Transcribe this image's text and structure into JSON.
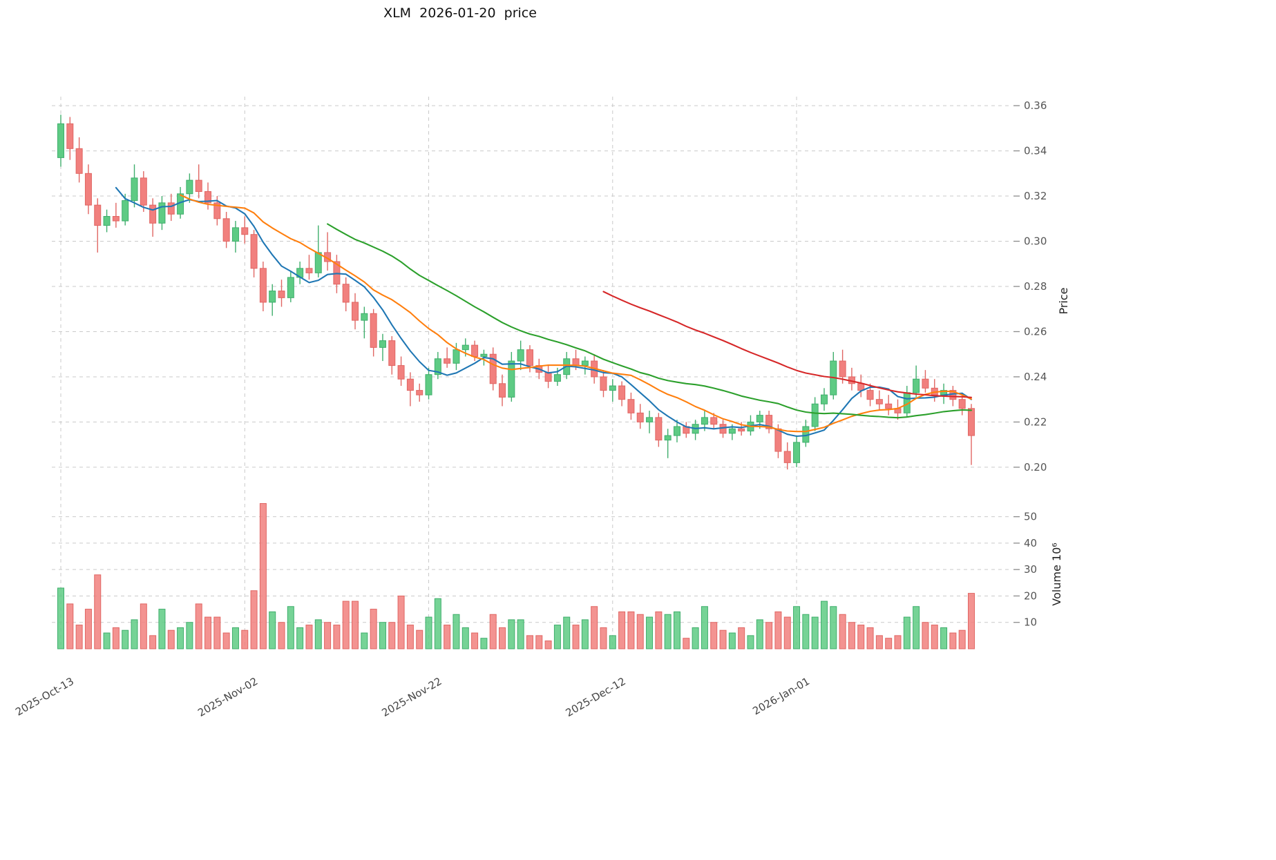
{
  "title": "XLM  2026-01-20  price",
  "chart_data": {
    "type": "candlestick",
    "title": "XLM  2026-01-20  price",
    "ylabel_price": "Price",
    "ylabel_volume": "Volume  10⁶",
    "legend": "none",
    "grid": true,
    "price_ticks": [
      0.2,
      0.22,
      0.24,
      0.26,
      0.28,
      0.3,
      0.32,
      0.34,
      0.36
    ],
    "price_range": [
      0.196,
      0.364
    ],
    "volume_ticks": [
      10,
      20,
      30,
      40,
      50
    ],
    "volume_max": 58,
    "x_ticks": [
      {
        "label": "2025-Oct-13",
        "index": 0
      },
      {
        "label": "2025-Nov-02",
        "index": 20
      },
      {
        "label": "2025-Nov-22",
        "index": 40
      },
      {
        "label": "2025-Dec-12",
        "index": 60
      },
      {
        "label": "2026-Jan-01",
        "index": 80
      }
    ],
    "colors": {
      "up": "#5ecb84",
      "up_edge": "#3fae6c",
      "down": "#f1807e",
      "down_edge": "#e06663",
      "grid": "#c9c9c9",
      "tick_text": "#555555"
    },
    "moving_averages": [
      {
        "name": "MA7",
        "window": 7,
        "color": "#1f77b4"
      },
      {
        "name": "MA14",
        "window": 14,
        "color": "#ff7f0e"
      },
      {
        "name": "MA30",
        "window": 30,
        "color": "#2ca02c"
      },
      {
        "name": "MA60",
        "window": 60,
        "color": "#d62728"
      }
    ],
    "columns": [
      "date",
      "open",
      "high",
      "low",
      "close",
      "volume_millions"
    ],
    "candles": [
      [
        "2025-10-13",
        0.337,
        0.356,
        0.333,
        0.352,
        23
      ],
      [
        "2025-10-14",
        0.352,
        0.355,
        0.336,
        0.341,
        17
      ],
      [
        "2025-10-15",
        0.341,
        0.346,
        0.326,
        0.33,
        9
      ],
      [
        "2025-10-16",
        0.33,
        0.334,
        0.312,
        0.316,
        15
      ],
      [
        "2025-10-17",
        0.316,
        0.319,
        0.295,
        0.307,
        28
      ],
      [
        "2025-10-18",
        0.307,
        0.314,
        0.304,
        0.311,
        6
      ],
      [
        "2025-10-19",
        0.311,
        0.317,
        0.306,
        0.309,
        8
      ],
      [
        "2025-10-20",
        0.309,
        0.321,
        0.307,
        0.318,
        7
      ],
      [
        "2025-10-21",
        0.318,
        0.334,
        0.315,
        0.328,
        11
      ],
      [
        "2025-10-22",
        0.328,
        0.331,
        0.313,
        0.316,
        17
      ],
      [
        "2025-10-23",
        0.316,
        0.319,
        0.302,
        0.308,
        5
      ],
      [
        "2025-10-24",
        0.308,
        0.32,
        0.305,
        0.317,
        15
      ],
      [
        "2025-10-25",
        0.317,
        0.321,
        0.309,
        0.312,
        7
      ],
      [
        "2025-10-26",
        0.312,
        0.324,
        0.31,
        0.321,
        8
      ],
      [
        "2025-10-27",
        0.321,
        0.33,
        0.317,
        0.327,
        10
      ],
      [
        "2025-10-28",
        0.327,
        0.334,
        0.319,
        0.322,
        17
      ],
      [
        "2025-10-29",
        0.322,
        0.326,
        0.314,
        0.317,
        12
      ],
      [
        "2025-10-30",
        0.317,
        0.32,
        0.307,
        0.31,
        12
      ],
      [
        "2025-10-31",
        0.31,
        0.313,
        0.297,
        0.3,
        6
      ],
      [
        "2025-11-01",
        0.3,
        0.309,
        0.295,
        0.306,
        8
      ],
      [
        "2025-11-02",
        0.306,
        0.311,
        0.299,
        0.303,
        7
      ],
      [
        "2025-11-03",
        0.303,
        0.305,
        0.284,
        0.288,
        22
      ],
      [
        "2025-11-04",
        0.288,
        0.291,
        0.269,
        0.273,
        55
      ],
      [
        "2025-11-05",
        0.273,
        0.281,
        0.267,
        0.278,
        14
      ],
      [
        "2025-11-06",
        0.278,
        0.283,
        0.271,
        0.275,
        10
      ],
      [
        "2025-11-07",
        0.275,
        0.287,
        0.273,
        0.284,
        16
      ],
      [
        "2025-11-08",
        0.284,
        0.291,
        0.281,
        0.288,
        8
      ],
      [
        "2025-11-09",
        0.288,
        0.294,
        0.283,
        0.286,
        9
      ],
      [
        "2025-11-10",
        0.286,
        0.307,
        0.284,
        0.295,
        11
      ],
      [
        "2025-11-11",
        0.295,
        0.304,
        0.287,
        0.291,
        10
      ],
      [
        "2025-11-12",
        0.291,
        0.294,
        0.277,
        0.281,
        9
      ],
      [
        "2025-11-13",
        0.281,
        0.284,
        0.269,
        0.273,
        18
      ],
      [
        "2025-11-14",
        0.273,
        0.277,
        0.261,
        0.265,
        18
      ],
      [
        "2025-11-15",
        0.265,
        0.271,
        0.257,
        0.268,
        6
      ],
      [
        "2025-11-16",
        0.268,
        0.27,
        0.249,
        0.253,
        15
      ],
      [
        "2025-11-17",
        0.253,
        0.259,
        0.247,
        0.256,
        10
      ],
      [
        "2025-11-18",
        0.256,
        0.258,
        0.241,
        0.245,
        10
      ],
      [
        "2025-11-19",
        0.245,
        0.249,
        0.236,
        0.239,
        20
      ],
      [
        "2025-11-20",
        0.239,
        0.242,
        0.227,
        0.234,
        9
      ],
      [
        "2025-11-21",
        0.234,
        0.237,
        0.229,
        0.232,
        7
      ],
      [
        "2025-11-22",
        0.232,
        0.244,
        0.23,
        0.241,
        12
      ],
      [
        "2025-11-23",
        0.241,
        0.251,
        0.239,
        0.248,
        19
      ],
      [
        "2025-11-24",
        0.248,
        0.253,
        0.244,
        0.246,
        9
      ],
      [
        "2025-11-25",
        0.246,
        0.255,
        0.243,
        0.252,
        13
      ],
      [
        "2025-11-26",
        0.252,
        0.257,
        0.249,
        0.254,
        8
      ],
      [
        "2025-11-27",
        0.254,
        0.256,
        0.247,
        0.249,
        6
      ],
      [
        "2025-11-28",
        0.249,
        0.252,
        0.245,
        0.25,
        4
      ],
      [
        "2025-11-29",
        0.25,
        0.253,
        0.234,
        0.237,
        13
      ],
      [
        "2025-11-30",
        0.237,
        0.241,
        0.227,
        0.231,
        8
      ],
      [
        "2025-12-01",
        0.231,
        0.251,
        0.229,
        0.247,
        11
      ],
      [
        "2025-12-02",
        0.247,
        0.256,
        0.243,
        0.252,
        11
      ],
      [
        "2025-12-03",
        0.252,
        0.254,
        0.242,
        0.245,
        5
      ],
      [
        "2025-12-04",
        0.245,
        0.248,
        0.239,
        0.242,
        5
      ],
      [
        "2025-12-05",
        0.242,
        0.245,
        0.235,
        0.238,
        3
      ],
      [
        "2025-12-06",
        0.238,
        0.244,
        0.236,
        0.241,
        9
      ],
      [
        "2025-12-07",
        0.241,
        0.251,
        0.239,
        0.248,
        12
      ],
      [
        "2025-12-08",
        0.248,
        0.252,
        0.243,
        0.245,
        9
      ],
      [
        "2025-12-09",
        0.245,
        0.249,
        0.241,
        0.247,
        11
      ],
      [
        "2025-12-10",
        0.247,
        0.25,
        0.237,
        0.24,
        16
      ],
      [
        "2025-12-11",
        0.24,
        0.243,
        0.231,
        0.234,
        8
      ],
      [
        "2025-12-12",
        0.234,
        0.239,
        0.229,
        0.236,
        5
      ],
      [
        "2025-12-13",
        0.236,
        0.238,
        0.227,
        0.23,
        14
      ],
      [
        "2025-12-14",
        0.23,
        0.233,
        0.221,
        0.224,
        14
      ],
      [
        "2025-12-15",
        0.224,
        0.228,
        0.217,
        0.22,
        13
      ],
      [
        "2025-12-16",
        0.22,
        0.225,
        0.215,
        0.222,
        12
      ],
      [
        "2025-12-17",
        0.222,
        0.224,
        0.209,
        0.212,
        14
      ],
      [
        "2025-12-18",
        0.212,
        0.217,
        0.204,
        0.214,
        13
      ],
      [
        "2025-12-19",
        0.214,
        0.221,
        0.211,
        0.218,
        14
      ],
      [
        "2025-12-20",
        0.218,
        0.22,
        0.213,
        0.215,
        4
      ],
      [
        "2025-12-21",
        0.215,
        0.221,
        0.212,
        0.219,
        8
      ],
      [
        "2025-12-22",
        0.219,
        0.225,
        0.216,
        0.222,
        16
      ],
      [
        "2025-12-23",
        0.222,
        0.224,
        0.217,
        0.219,
        10
      ],
      [
        "2025-12-24",
        0.219,
        0.221,
        0.213,
        0.215,
        7
      ],
      [
        "2025-12-25",
        0.215,
        0.219,
        0.212,
        0.217,
        6
      ],
      [
        "2025-12-26",
        0.217,
        0.22,
        0.214,
        0.216,
        8
      ],
      [
        "2025-12-27",
        0.216,
        0.223,
        0.214,
        0.22,
        5
      ],
      [
        "2025-12-28",
        0.22,
        0.225,
        0.217,
        0.223,
        11
      ],
      [
        "2025-12-29",
        0.223,
        0.225,
        0.215,
        0.217,
        10
      ],
      [
        "2025-12-30",
        0.217,
        0.219,
        0.204,
        0.207,
        14
      ],
      [
        "2025-12-31",
        0.207,
        0.211,
        0.199,
        0.202,
        12
      ],
      [
        "2026-01-01",
        0.202,
        0.214,
        0.2,
        0.211,
        16
      ],
      [
        "2026-01-02",
        0.211,
        0.221,
        0.209,
        0.218,
        13
      ],
      [
        "2026-01-03",
        0.218,
        0.231,
        0.216,
        0.228,
        12
      ],
      [
        "2026-01-04",
        0.228,
        0.235,
        0.225,
        0.232,
        18
      ],
      [
        "2026-01-05",
        0.232,
        0.251,
        0.23,
        0.247,
        16
      ],
      [
        "2026-01-06",
        0.247,
        0.252,
        0.237,
        0.24,
        13
      ],
      [
        "2026-01-07",
        0.24,
        0.244,
        0.234,
        0.237,
        10
      ],
      [
        "2026-01-08",
        0.237,
        0.241,
        0.231,
        0.234,
        9
      ],
      [
        "2026-01-09",
        0.234,
        0.237,
        0.227,
        0.23,
        8
      ],
      [
        "2026-01-10",
        0.23,
        0.234,
        0.225,
        0.228,
        5
      ],
      [
        "2026-01-11",
        0.228,
        0.232,
        0.223,
        0.226,
        4
      ],
      [
        "2026-01-12",
        0.226,
        0.23,
        0.221,
        0.224,
        5
      ],
      [
        "2026-01-13",
        0.224,
        0.236,
        0.222,
        0.233,
        12
      ],
      [
        "2026-01-14",
        0.233,
        0.245,
        0.231,
        0.239,
        16
      ],
      [
        "2026-01-15",
        0.239,
        0.243,
        0.233,
        0.235,
        10
      ],
      [
        "2026-01-16",
        0.235,
        0.239,
        0.229,
        0.232,
        9
      ],
      [
        "2026-01-17",
        0.232,
        0.237,
        0.228,
        0.234,
        8
      ],
      [
        "2026-01-18",
        0.234,
        0.236,
        0.227,
        0.23,
        6
      ],
      [
        "2026-01-19",
        0.23,
        0.233,
        0.223,
        0.226,
        7
      ],
      [
        "2026-01-20",
        0.226,
        0.228,
        0.201,
        0.214,
        21
      ]
    ]
  }
}
